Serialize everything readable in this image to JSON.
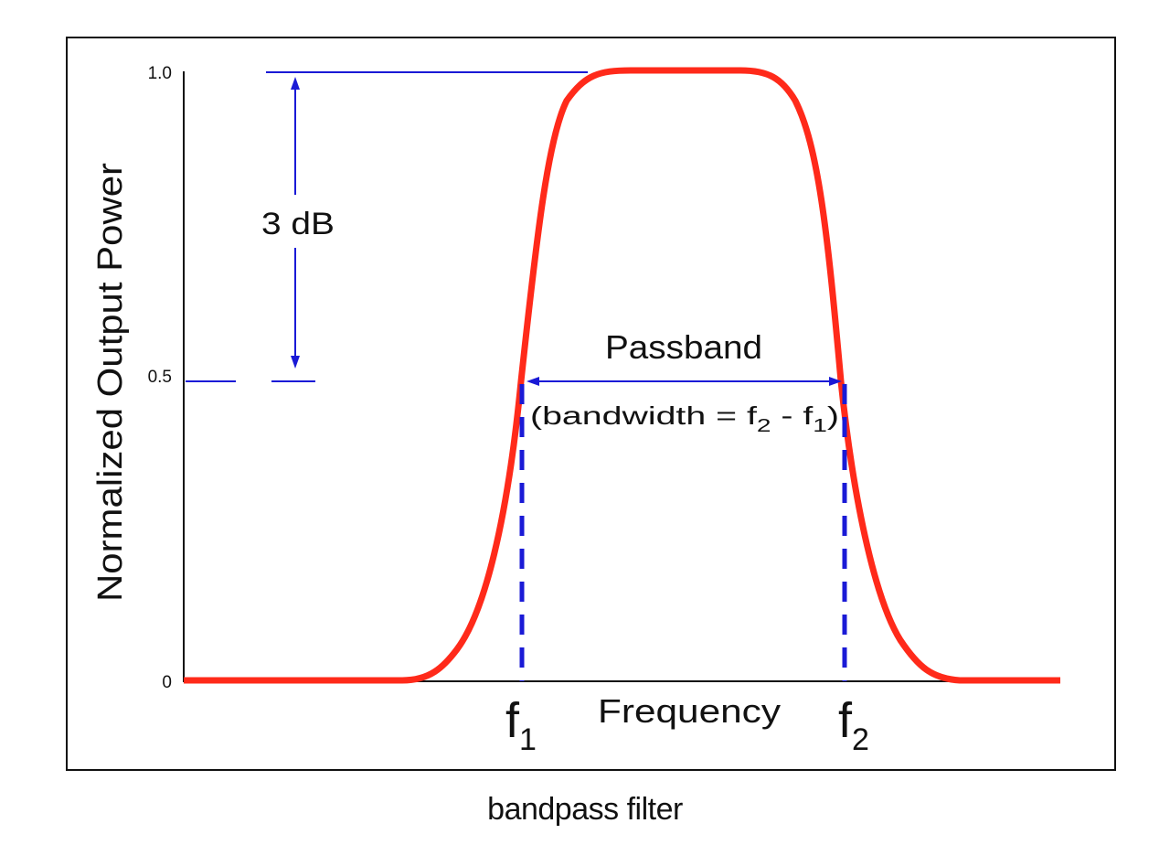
{
  "diagram": {
    "ylabel": "Normalized Output Power",
    "xlabel": "Frequency",
    "ticks": {
      "top": "1.0",
      "mid": "0.5",
      "bottom": "0"
    },
    "annotations": {
      "db": "3 dB",
      "passband": "Passband",
      "bandwidth_prefix": "(bandwidth = f",
      "bandwidth_sub2": "2",
      "bandwidth_minus": " - f",
      "bandwidth_sub1": "1",
      "bandwidth_close": ")"
    },
    "f1": {
      "base": "f",
      "sub": "1"
    },
    "f2": {
      "base": "f",
      "sub": "2"
    },
    "caption": "bandpass filter"
  },
  "colors": {
    "curve": "#ff2a1a",
    "annotation": "#1a1ad6",
    "frame": "#111111"
  }
}
